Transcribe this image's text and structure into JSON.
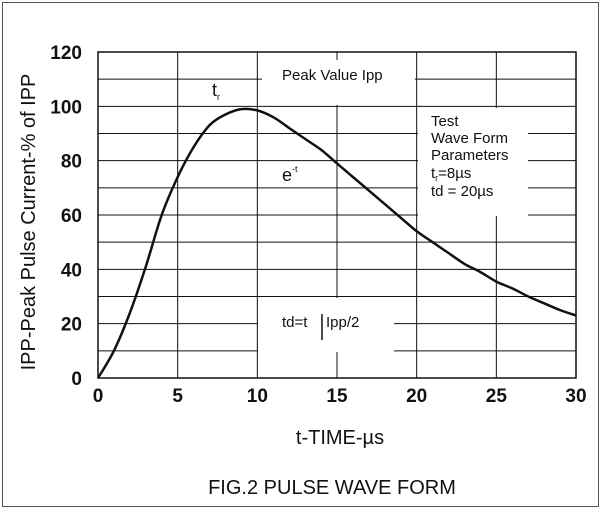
{
  "chart_data": {
    "type": "line",
    "title": "FIG.2 PULSE WAVE FORM",
    "xlabel": "t-TIME-µs",
    "ylabel": "IPP-Peak Pulse Current-% of IPP",
    "xlim": [
      0,
      30
    ],
    "ylim": [
      0,
      120
    ],
    "x_ticks": [
      "0",
      "5",
      "10",
      "15",
      "20",
      "25",
      "30"
    ],
    "y_ticks": [
      "0",
      "20",
      "40",
      "60",
      "80",
      "100",
      "120"
    ],
    "grid": true,
    "series": [
      {
        "x": [
          0,
          1,
          2,
          3,
          4,
          5,
          6,
          7,
          8,
          9,
          10,
          11,
          12,
          13,
          14,
          15,
          16,
          17,
          18,
          19,
          20,
          21,
          22,
          23,
          24,
          25,
          26,
          27,
          28,
          29,
          30
        ],
        "values": [
          0,
          10,
          24,
          41,
          60,
          74,
          85,
          93,
          97,
          99,
          98.5,
          96,
          92,
          88,
          84,
          79,
          74,
          69,
          64,
          59,
          54,
          50,
          46,
          42,
          39,
          35.5,
          33,
          30,
          27.5,
          25,
          23
        ]
      }
    ],
    "annotations": {
      "peak_value": "Peak Value Ipp",
      "tr_main": "t",
      "tr_sub": "r",
      "decay_main": "e",
      "decay_sup": "-t",
      "params_title_1": "Test",
      "params_title_2": "Wave Form",
      "params_title_3": "Parameters",
      "param_tr_main": "t",
      "param_tr_sub": "r",
      "param_tr_value": "=8µs",
      "param_td": "td = 20µs",
      "half_label_left": "td=t",
      "half_label_right": "Ipp/2"
    }
  }
}
